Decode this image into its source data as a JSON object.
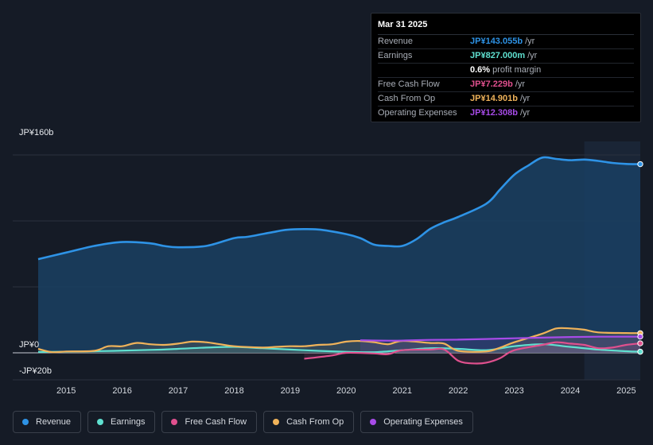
{
  "tooltip": {
    "date": "Mar 31 2025",
    "rows": [
      {
        "label": "Revenue",
        "value": "JP¥143.055b",
        "unit": "/yr",
        "color": "#2e93e6"
      },
      {
        "label": "Earnings",
        "value": "JP¥827.000m",
        "unit": "/yr",
        "color": "#5fe0d0"
      },
      {
        "label": "",
        "value": "0.6%",
        "unit": "profit margin",
        "color": "#ffffff"
      },
      {
        "label": "Free Cash Flow",
        "value": "JP¥7.229b",
        "unit": "/yr",
        "color": "#e0508e"
      },
      {
        "label": "Cash From Op",
        "value": "JP¥14.901b",
        "unit": "/yr",
        "color": "#f0b35a"
      },
      {
        "label": "Operating Expenses",
        "value": "JP¥12.308b",
        "unit": "/yr",
        "color": "#a74be8"
      }
    ]
  },
  "legend": [
    {
      "label": "Revenue",
      "color": "#2e93e6"
    },
    {
      "label": "Earnings",
      "color": "#5fe0d0"
    },
    {
      "label": "Free Cash Flow",
      "color": "#e0508e"
    },
    {
      "label": "Cash From Op",
      "color": "#f0b35a"
    },
    {
      "label": "Operating Expenses",
      "color": "#a74be8"
    }
  ],
  "chart_data": {
    "type": "area",
    "y_unit": "JP¥ billions",
    "ylim": [
      -20,
      160
    ],
    "y_tick_labels": [
      "JP¥160b",
      "JP¥0",
      "-JP¥20b"
    ],
    "xlim": [
      2014.3,
      2025.3
    ],
    "x_tick_labels": [
      "2015",
      "2016",
      "2017",
      "2018",
      "2019",
      "2020",
      "2021",
      "2022",
      "2023",
      "2024",
      "2025"
    ],
    "x_tick_values": [
      2015,
      2016,
      2017,
      2018,
      2019,
      2020,
      2021,
      2022,
      2023,
      2024,
      2025
    ],
    "highlight_from": 2024.25,
    "series": [
      {
        "name": "Revenue",
        "color": "#2e93e6",
        "area": true,
        "points": [
          [
            2014.5,
            71
          ],
          [
            2015.0,
            76
          ],
          [
            2015.5,
            81
          ],
          [
            2016.0,
            84
          ],
          [
            2016.5,
            83
          ],
          [
            2016.75,
            81
          ],
          [
            2017.0,
            80
          ],
          [
            2017.5,
            81
          ],
          [
            2018.0,
            87
          ],
          [
            2018.25,
            88
          ],
          [
            2018.75,
            92
          ],
          [
            2019.0,
            93.5
          ],
          [
            2019.5,
            93.5
          ],
          [
            2020.0,
            90
          ],
          [
            2020.25,
            87
          ],
          [
            2020.5,
            82
          ],
          [
            2020.75,
            81
          ],
          [
            2021.0,
            81
          ],
          [
            2021.25,
            86
          ],
          [
            2021.5,
            94
          ],
          [
            2021.75,
            99
          ],
          [
            2022.0,
            103
          ],
          [
            2022.5,
            113
          ],
          [
            2022.75,
            124
          ],
          [
            2023.0,
            135
          ],
          [
            2023.25,
            142
          ],
          [
            2023.5,
            148
          ],
          [
            2023.75,
            147
          ],
          [
            2024.0,
            146
          ],
          [
            2024.25,
            146.5
          ],
          [
            2024.5,
            145.5
          ],
          [
            2024.75,
            144
          ],
          [
            2025.0,
            143.2
          ],
          [
            2025.25,
            143.05
          ]
        ]
      },
      {
        "name": "Earnings",
        "color": "#5fe0d0",
        "points": [
          [
            2014.5,
            0.6
          ],
          [
            2015.5,
            1.2
          ],
          [
            2016.5,
            2.2
          ],
          [
            2017.0,
            3
          ],
          [
            2017.5,
            4
          ],
          [
            2018.0,
            4.5
          ],
          [
            2018.5,
            3.5
          ],
          [
            2019.0,
            2.5
          ],
          [
            2019.5,
            1.5
          ],
          [
            2020.0,
            0.8
          ],
          [
            2020.5,
            0.5
          ],
          [
            2021.0,
            2
          ],
          [
            2021.5,
            3.5
          ],
          [
            2022.0,
            3
          ],
          [
            2022.5,
            2
          ],
          [
            2023.0,
            5
          ],
          [
            2023.5,
            6.5
          ],
          [
            2024.0,
            4.5
          ],
          [
            2024.5,
            2.5
          ],
          [
            2025.0,
            1.2
          ],
          [
            2025.25,
            0.83
          ]
        ]
      },
      {
        "name": "Free Cash Flow",
        "color": "#e0508e",
        "points": [
          [
            2019.25,
            -4.5
          ],
          [
            2019.75,
            -2
          ],
          [
            2020.0,
            0
          ],
          [
            2020.5,
            -0.5
          ],
          [
            2020.75,
            -1
          ],
          [
            2021.0,
            2
          ],
          [
            2021.5,
            2.5
          ],
          [
            2021.75,
            2.5
          ],
          [
            2022.0,
            -6
          ],
          [
            2022.25,
            -8
          ],
          [
            2022.5,
            -7.5
          ],
          [
            2022.75,
            -4
          ],
          [
            2023.0,
            2
          ],
          [
            2023.5,
            6
          ],
          [
            2023.75,
            8
          ],
          [
            2024.0,
            7
          ],
          [
            2024.25,
            6
          ],
          [
            2024.5,
            3.5
          ],
          [
            2024.75,
            4
          ],
          [
            2025.0,
            6
          ],
          [
            2025.25,
            7.2
          ]
        ]
      },
      {
        "name": "Cash From Op",
        "color": "#f0b35a",
        "points": [
          [
            2014.5,
            3
          ],
          [
            2014.75,
            0.5
          ],
          [
            2015.0,
            1
          ],
          [
            2015.5,
            1.5
          ],
          [
            2015.75,
            5
          ],
          [
            2016.0,
            5
          ],
          [
            2016.25,
            7.5
          ],
          [
            2016.5,
            6.5
          ],
          [
            2016.75,
            6
          ],
          [
            2017.0,
            7
          ],
          [
            2017.25,
            8.5
          ],
          [
            2017.5,
            8
          ],
          [
            2017.75,
            6.5
          ],
          [
            2018.0,
            5
          ],
          [
            2018.5,
            4
          ],
          [
            2018.75,
            4.5
          ],
          [
            2019.0,
            5
          ],
          [
            2019.25,
            5
          ],
          [
            2019.5,
            6
          ],
          [
            2019.75,
            6.5
          ],
          [
            2020.0,
            8.5
          ],
          [
            2020.25,
            9
          ],
          [
            2020.5,
            8
          ],
          [
            2020.75,
            6.5
          ],
          [
            2021.0,
            9
          ],
          [
            2021.5,
            7.5
          ],
          [
            2021.75,
            7
          ],
          [
            2022.0,
            1.5
          ],
          [
            2022.5,
            1
          ],
          [
            2022.75,
            4
          ],
          [
            2023.0,
            8
          ],
          [
            2023.5,
            14.5
          ],
          [
            2023.75,
            18.5
          ],
          [
            2024.0,
            18.5
          ],
          [
            2024.25,
            17.5
          ],
          [
            2024.5,
            15.5
          ],
          [
            2025.0,
            15
          ],
          [
            2025.25,
            14.9
          ]
        ]
      },
      {
        "name": "Operating Expenses",
        "color": "#a74be8",
        "points": [
          [
            2020.25,
            9.5
          ],
          [
            2020.75,
            9.2
          ],
          [
            2021.0,
            9.3
          ],
          [
            2021.5,
            9.8
          ],
          [
            2022.0,
            10
          ],
          [
            2022.5,
            10.5
          ],
          [
            2023.0,
            11
          ],
          [
            2023.5,
            11.5
          ],
          [
            2024.0,
            12
          ],
          [
            2024.5,
            12.2
          ],
          [
            2025.0,
            12.3
          ],
          [
            2025.25,
            12.31
          ]
        ]
      }
    ]
  }
}
